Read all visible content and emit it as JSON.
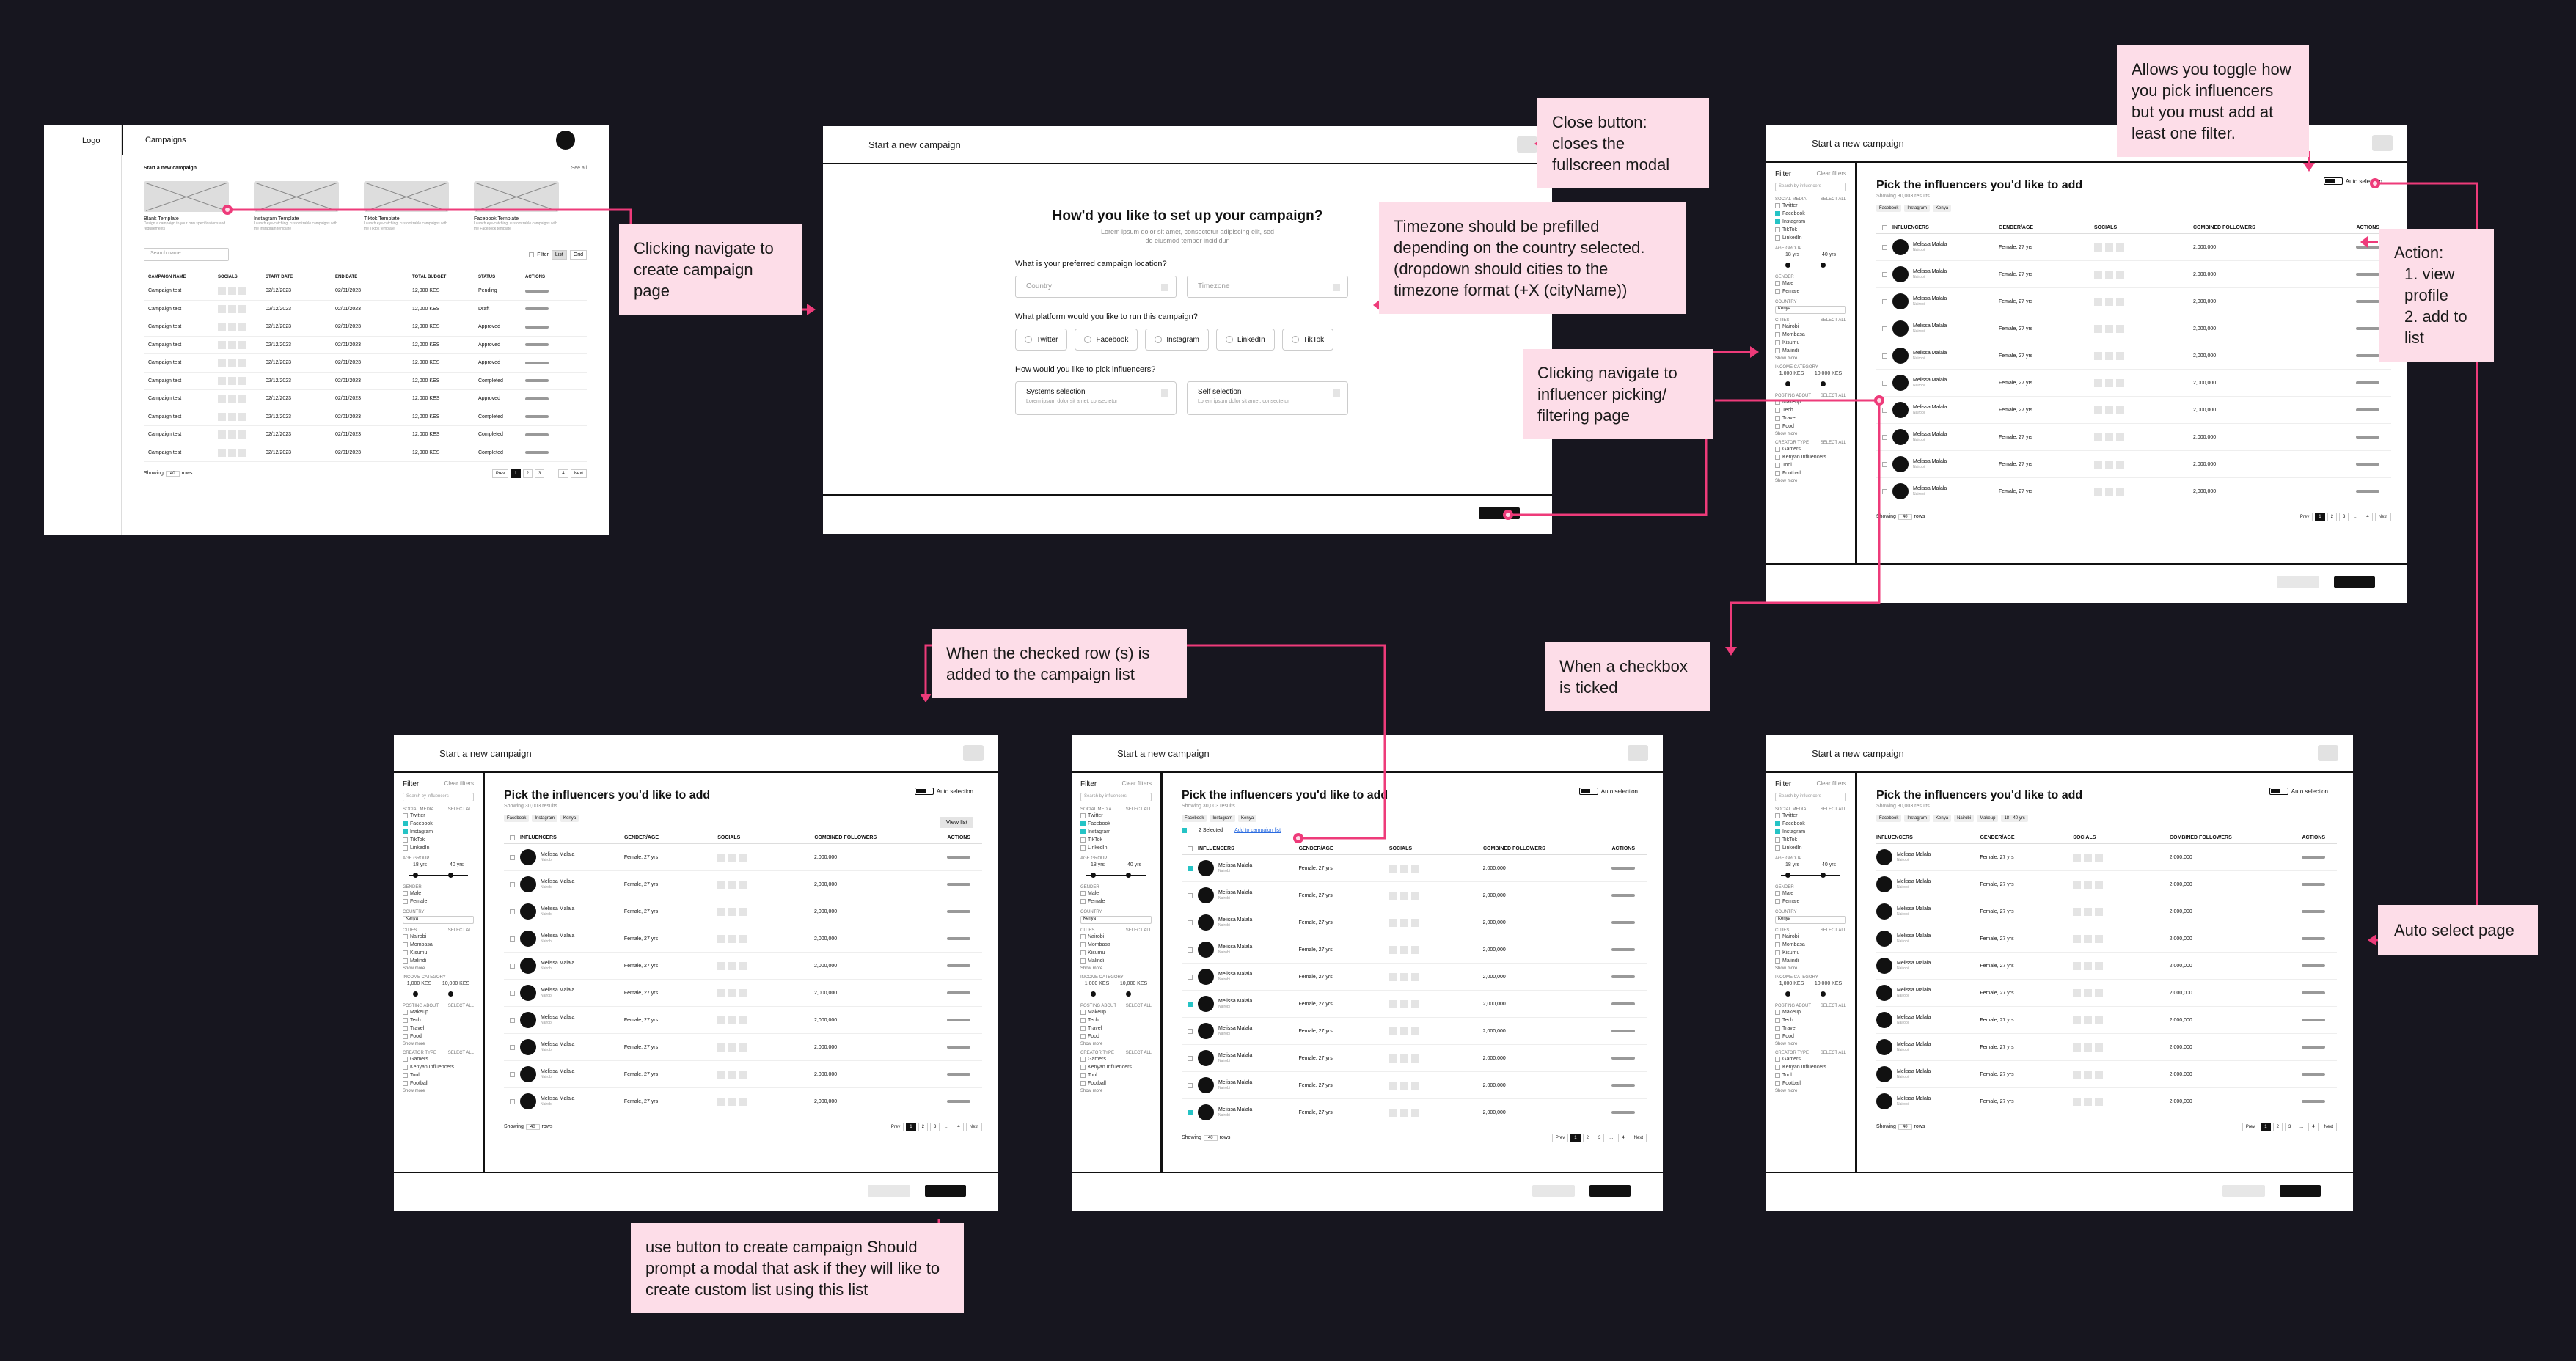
{
  "annotations": {
    "navigate_create": "Clicking navigate to create campaign page",
    "close_button": "Close button: closes the fullscreen modal",
    "timezone": "Timezone should be prefilled depending on the country selected. (dropdown should cities to the timezone format (+X (cityName))",
    "navigate_picking": "Clicking navigate to influencer picking/ filtering page",
    "toggle": "Allows you toggle how you pick influencers but you must add at least one filter.",
    "action_title": "Action:",
    "action_1": "1. view profile",
    "action_2": "2. add to list",
    "checked_row": "When the checked row (s) is added to the campaign list",
    "checkbox_ticked": "When a checkbox is ticked",
    "auto_select": "Auto select page",
    "use_button": "use button to create campaign Should prompt a modal that ask if they will like to create custom list using this list"
  },
  "dashboard": {
    "logo": "Logo",
    "header_title": "Campaigns",
    "section_title": "Start a new campaign",
    "see_all": "See all",
    "templates": [
      {
        "name": "Blank Template",
        "desc": "Design a campaign to your own specifications and requirements"
      },
      {
        "name": "Instagram Template",
        "desc": "Launch eye-catching, customizable campaigns with the Instagram template"
      },
      {
        "name": "Tiktok Template",
        "desc": "Launch eye-catching, customizable campaigns with the Tiktok template"
      },
      {
        "name": "Facebook Template",
        "desc": "Launch eye-catching, customizable campaigns with the Facebook template"
      }
    ],
    "search_placeholder": "Search name",
    "filter": "Filter",
    "view_list": "List",
    "view_grid": "Grid",
    "columns": [
      "CAMPAIGN NAME",
      "SOCIALS",
      "START DATE",
      "END DATE",
      "TOTAL BUDGET",
      "STATUS",
      "ACTIONS"
    ],
    "rows": [
      {
        "name": "Campaign test",
        "start": "02/12/2023",
        "end": "02/01/2023",
        "budget": "12,000 KES",
        "status": "Pending"
      },
      {
        "name": "Campaign test",
        "start": "02/12/2023",
        "end": "02/01/2023",
        "budget": "12,000 KES",
        "status": "Draft"
      },
      {
        "name": "Campaign test",
        "start": "02/12/2023",
        "end": "02/01/2023",
        "budget": "12,000 KES",
        "status": "Approved"
      },
      {
        "name": "Campaign test",
        "start": "02/12/2023",
        "end": "02/01/2023",
        "budget": "12,000 KES",
        "status": "Approved"
      },
      {
        "name": "Campaign test",
        "start": "02/12/2023",
        "end": "02/01/2023",
        "budget": "12,000 KES",
        "status": "Approved"
      },
      {
        "name": "Campaign test",
        "start": "02/12/2023",
        "end": "02/01/2023",
        "budget": "12,000 KES",
        "status": "Completed"
      },
      {
        "name": "Campaign test",
        "start": "02/12/2023",
        "end": "02/01/2023",
        "budget": "12,000 KES",
        "status": "Approved"
      },
      {
        "name": "Campaign test",
        "start": "02/12/2023",
        "end": "02/01/2023",
        "budget": "12,000 KES",
        "status": "Completed"
      },
      {
        "name": "Campaign test",
        "start": "02/12/2023",
        "end": "02/01/2023",
        "budget": "12,000 KES",
        "status": "Completed"
      },
      {
        "name": "Campaign test",
        "start": "02/12/2023",
        "end": "02/01/2023",
        "budget": "12,000 KES",
        "status": "Completed"
      }
    ],
    "showing": "Showing",
    "rows_value": "40",
    "rows_label": "rows",
    "prev": "Prev",
    "next": "Next",
    "pages": [
      "1",
      "2",
      "3",
      "...",
      "4"
    ]
  },
  "setup": {
    "header": "Start a new campaign",
    "title": "How'd you like to set up your campaign?",
    "subtitle_1": "Lorem ipsum dolor sit amet, consectetur adipiscing elit, sed",
    "subtitle_2": "do eiusmod tempor incididun",
    "q_location": "What is your preferred campaign location?",
    "country": "Country",
    "timezone": "Timezone",
    "q_platform": "What platform would you like to run this campaign?",
    "platforms": [
      "Twitter",
      "Facebook",
      "Instagram",
      "LinkedIn",
      "TikTok"
    ],
    "q_pick": "How would you like to pick influencers?",
    "pick_options": [
      {
        "name": "Systems selection",
        "desc": "Lorem ipsum dolor sit amet, consectetur"
      },
      {
        "name": "Self selection",
        "desc": "Lorem ipsum dolor sit amet, consectetur"
      }
    ]
  },
  "picker": {
    "header": "Start a new campaign",
    "title": "Pick the influencers you'd like to add",
    "showing": "Showing 30,003 results",
    "auto_selection": "Auto selection",
    "view_list": "View list",
    "selected": "2 Selected",
    "add_to_list": "Add to campaign list",
    "tags": [
      "Facebook",
      "Instagram",
      "Kenya"
    ],
    "tags_long": [
      "Facebook",
      "Instagram",
      "Kenya",
      "Nairobi",
      "Makeup",
      "18 - 40 yrs"
    ],
    "columns": [
      "INFLUENCERS",
      "GENDER/AGE",
      "SOCIALS",
      "COMBINED FOLLOWERS",
      "ACTIONS"
    ],
    "row": {
      "name": "Melissa Malala",
      "location": "Nairobi",
      "gender_age": "Female, 27 yrs",
      "followers": "2,000,000"
    },
    "filter": {
      "title": "Filter",
      "clear": "Clear filters",
      "search_placeholder": "Search by influencers",
      "social_media": "SOCIAL MEDIA",
      "select_all": "Select all",
      "platforms": [
        "Twitter",
        "Facebook",
        "Instagram",
        "TikTok",
        "LinkedIn"
      ],
      "age_group": "AGE GROUP",
      "age_min": "18 yrs",
      "age_max": "40 yrs",
      "gender": "GENDER",
      "genders": [
        "Male",
        "Female"
      ],
      "country": "COUNTRY",
      "country_value": "Kenya",
      "cities": "CITIES",
      "city_list": [
        "Nairobi",
        "Mombasa",
        "Kisumu",
        "Malindi"
      ],
      "show_more": "Show more",
      "income": "INCOME CATEGORY",
      "income_min": "1,000 KES",
      "income_max": "10,000 KES",
      "posting": "POSTING ABOUT",
      "topics": [
        "Makeup",
        "Tech",
        "Travel",
        "Food"
      ],
      "creator": "CREATOR TYPE",
      "creators": [
        "Gamers",
        "Kenyan Influencers",
        "Tool",
        "Football"
      ]
    },
    "rows_value": "40",
    "rows_label": "rows",
    "prev": "Prev",
    "next": "Next",
    "pages": [
      "1",
      "2",
      "3",
      "...",
      "4"
    ]
  }
}
